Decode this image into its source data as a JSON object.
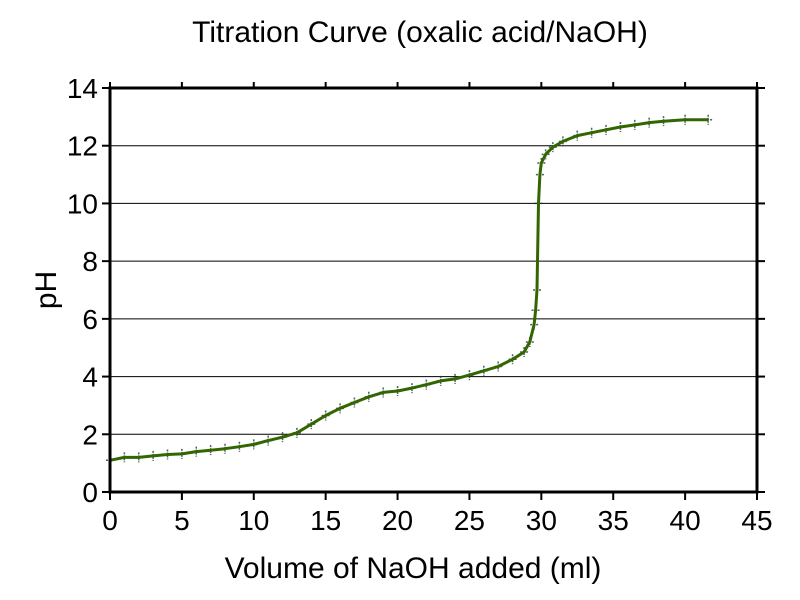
{
  "chart_data": {
    "type": "line",
    "title": "Titration Curve (oxalic acid/NaOH)",
    "xlabel": "Volume of NaOH added (ml)",
    "ylabel": "pH",
    "xlim": [
      0,
      45
    ],
    "ylim": [
      0,
      14
    ],
    "xticks": [
      "0",
      "5",
      "10",
      "15",
      "20",
      "25",
      "30",
      "35",
      "40",
      "45"
    ],
    "yticks": [
      "0",
      "2",
      "4",
      "6",
      "8",
      "10",
      "12",
      "14"
    ],
    "grid": "horizontal",
    "line_color": "#336600",
    "marker_color": "#1a3a33",
    "x": [
      0,
      1,
      2,
      3,
      4,
      5,
      6,
      7,
      8,
      9,
      10,
      11,
      12,
      13,
      14,
      15,
      16,
      17,
      18,
      19,
      20,
      21,
      22,
      23,
      24,
      25,
      26,
      27,
      28,
      28.8,
      29.2,
      29.5,
      29.6,
      29.7,
      29.8,
      29.9,
      30.0,
      30.3,
      30.8,
      31.5,
      32.5,
      33.5,
      34.5,
      35.5,
      36.5,
      37.5,
      38.5,
      40,
      41.6
    ],
    "y": [
      1.1,
      1.2,
      1.2,
      1.25,
      1.3,
      1.32,
      1.4,
      1.45,
      1.5,
      1.57,
      1.65,
      1.78,
      1.9,
      2.05,
      2.35,
      2.65,
      2.9,
      3.1,
      3.3,
      3.45,
      3.5,
      3.6,
      3.72,
      3.85,
      3.92,
      4.05,
      4.2,
      4.35,
      4.6,
      4.85,
      5.2,
      5.8,
      6.3,
      7.0,
      10.0,
      11.0,
      11.4,
      11.7,
      11.95,
      12.15,
      12.35,
      12.45,
      12.55,
      12.65,
      12.72,
      12.8,
      12.85,
      12.9,
      12.9
    ]
  }
}
